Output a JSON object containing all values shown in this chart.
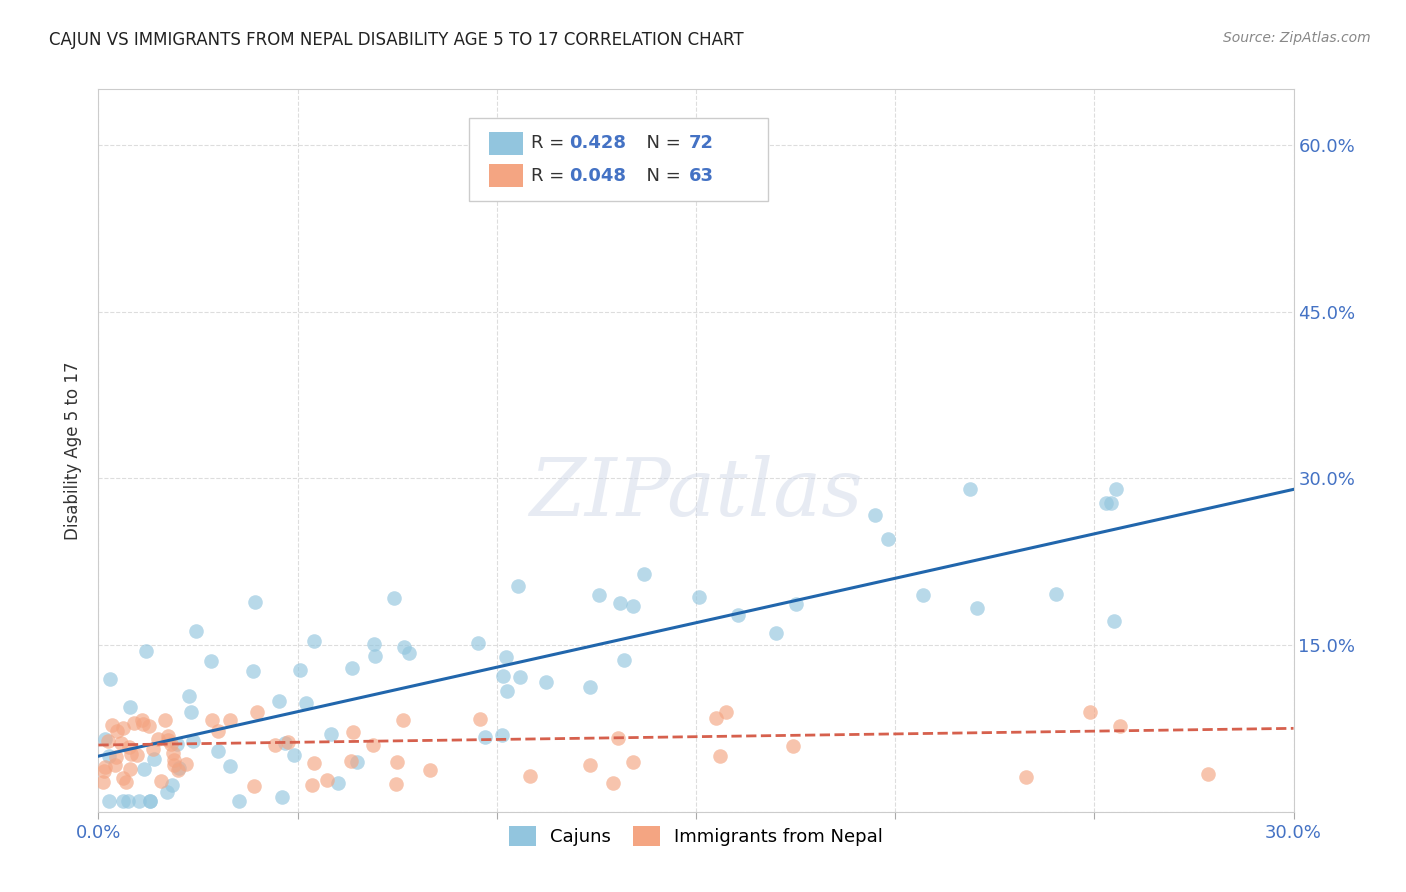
{
  "title": "CAJUN VS IMMIGRANTS FROM NEPAL DISABILITY AGE 5 TO 17 CORRELATION CHART",
  "source": "Source: ZipAtlas.com",
  "ylabel": "Disability Age 5 to 17",
  "xlim": [
    0.0,
    0.3
  ],
  "ylim": [
    0.0,
    0.65
  ],
  "y_tick_vals": [
    0.0,
    0.15,
    0.3,
    0.45,
    0.6
  ],
  "y_tick_labels_right": [
    "",
    "15.0%",
    "30.0%",
    "45.0%",
    "60.0%"
  ],
  "x_tick_vals": [
    0.0,
    0.05,
    0.1,
    0.15,
    0.2,
    0.25,
    0.3
  ],
  "x_tick_labels": [
    "0.0%",
    "",
    "",
    "",
    "",
    "",
    "30.0%"
  ],
  "cajun_R": 0.428,
  "cajun_N": 72,
  "nepal_R": 0.048,
  "nepal_N": 63,
  "cajun_color": "#92c5de",
  "nepal_color": "#f4a582",
  "cajun_scatter_color": "#92c5de",
  "nepal_scatter_color": "#f4a582",
  "cajun_line_color": "#2166ac",
  "nepal_line_color": "#d6604d",
  "background_color": "#ffffff",
  "tick_color": "#4472c4",
  "title_color": "#222222",
  "source_color": "#888888",
  "ylabel_color": "#333333",
  "grid_color": "#dddddd",
  "legend_edge_color": "#cccccc",
  "watermark_color": "#d0d8e8",
  "watermark_alpha": 0.5
}
